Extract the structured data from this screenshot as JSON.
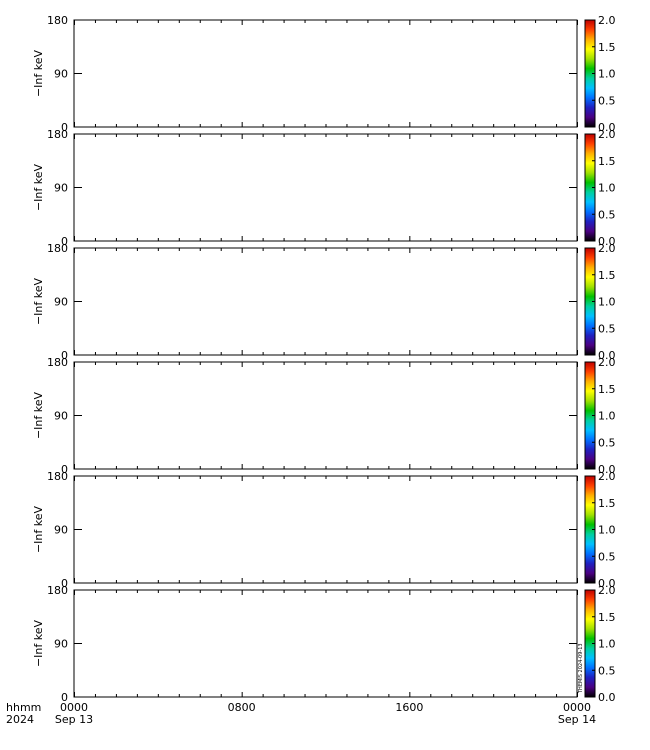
{
  "chart_data": {
    "type": "heatmap",
    "panels": [
      {
        "ylabel": "−Inf keV",
        "y_ticks": [
          "0",
          "90",
          "180"
        ],
        "ylim": [
          0,
          180
        ],
        "colorbar": {
          "ticks": [
            "0.0",
            "0.5",
            "1.0",
            "1.5",
            "2.0"
          ],
          "range": [
            0,
            2
          ]
        }
      },
      {
        "ylabel": "−Inf keV",
        "y_ticks": [
          "0",
          "90",
          "180"
        ],
        "ylim": [
          0,
          180
        ],
        "colorbar": {
          "ticks": [
            "0.0",
            "0.5",
            "1.0",
            "1.5",
            "2.0"
          ],
          "range": [
            0,
            2
          ]
        }
      },
      {
        "ylabel": "−Inf keV",
        "y_ticks": [
          "0",
          "90",
          "180"
        ],
        "ylim": [
          0,
          180
        ],
        "colorbar": {
          "ticks": [
            "0.0",
            "0.5",
            "1.0",
            "1.5",
            "2.0"
          ],
          "range": [
            0,
            2
          ]
        }
      },
      {
        "ylabel": "−Inf keV",
        "y_ticks": [
          "0",
          "90",
          "180"
        ],
        "ylim": [
          0,
          180
        ],
        "colorbar": {
          "ticks": [
            "0.0",
            "0.5",
            "1.0",
            "1.5",
            "2.0"
          ],
          "range": [
            0,
            2
          ]
        }
      },
      {
        "ylabel": "−Inf keV",
        "y_ticks": [
          "0",
          "90",
          "180"
        ],
        "ylim": [
          0,
          180
        ],
        "colorbar": {
          "ticks": [
            "0.0",
            "0.5",
            "1.0",
            "1.5",
            "2.0"
          ],
          "range": [
            0,
            2
          ]
        }
      },
      {
        "ylabel": "−Inf keV",
        "y_ticks": [
          "0",
          "90",
          "180"
        ],
        "ylim": [
          0,
          180
        ],
        "colorbar": {
          "ticks": [
            "0.0",
            "0.5",
            "1.0",
            "1.5",
            "2.0"
          ],
          "range": [
            0,
            2
          ]
        }
      }
    ],
    "x_axis": {
      "row_labels": [
        "hhmm",
        "2024"
      ],
      "ticks": [
        {
          "time": "0000",
          "date": "Sep 13"
        },
        {
          "time": "0800",
          "date": ""
        },
        {
          "time": "1600",
          "date": ""
        },
        {
          "time": "0000",
          "date": "Sep 14"
        }
      ],
      "range_hours": [
        0,
        24
      ]
    },
    "values": [],
    "colormap": [
      "#000000",
      "#4b0082",
      "#2020c0",
      "#0070ff",
      "#00c0ff",
      "#00d0a0",
      "#00c000",
      "#a0e000",
      "#ffff00",
      "#ffb000",
      "#ff4000",
      "#c00000"
    ],
    "stamp": "THEMIS 2024-09-13"
  }
}
